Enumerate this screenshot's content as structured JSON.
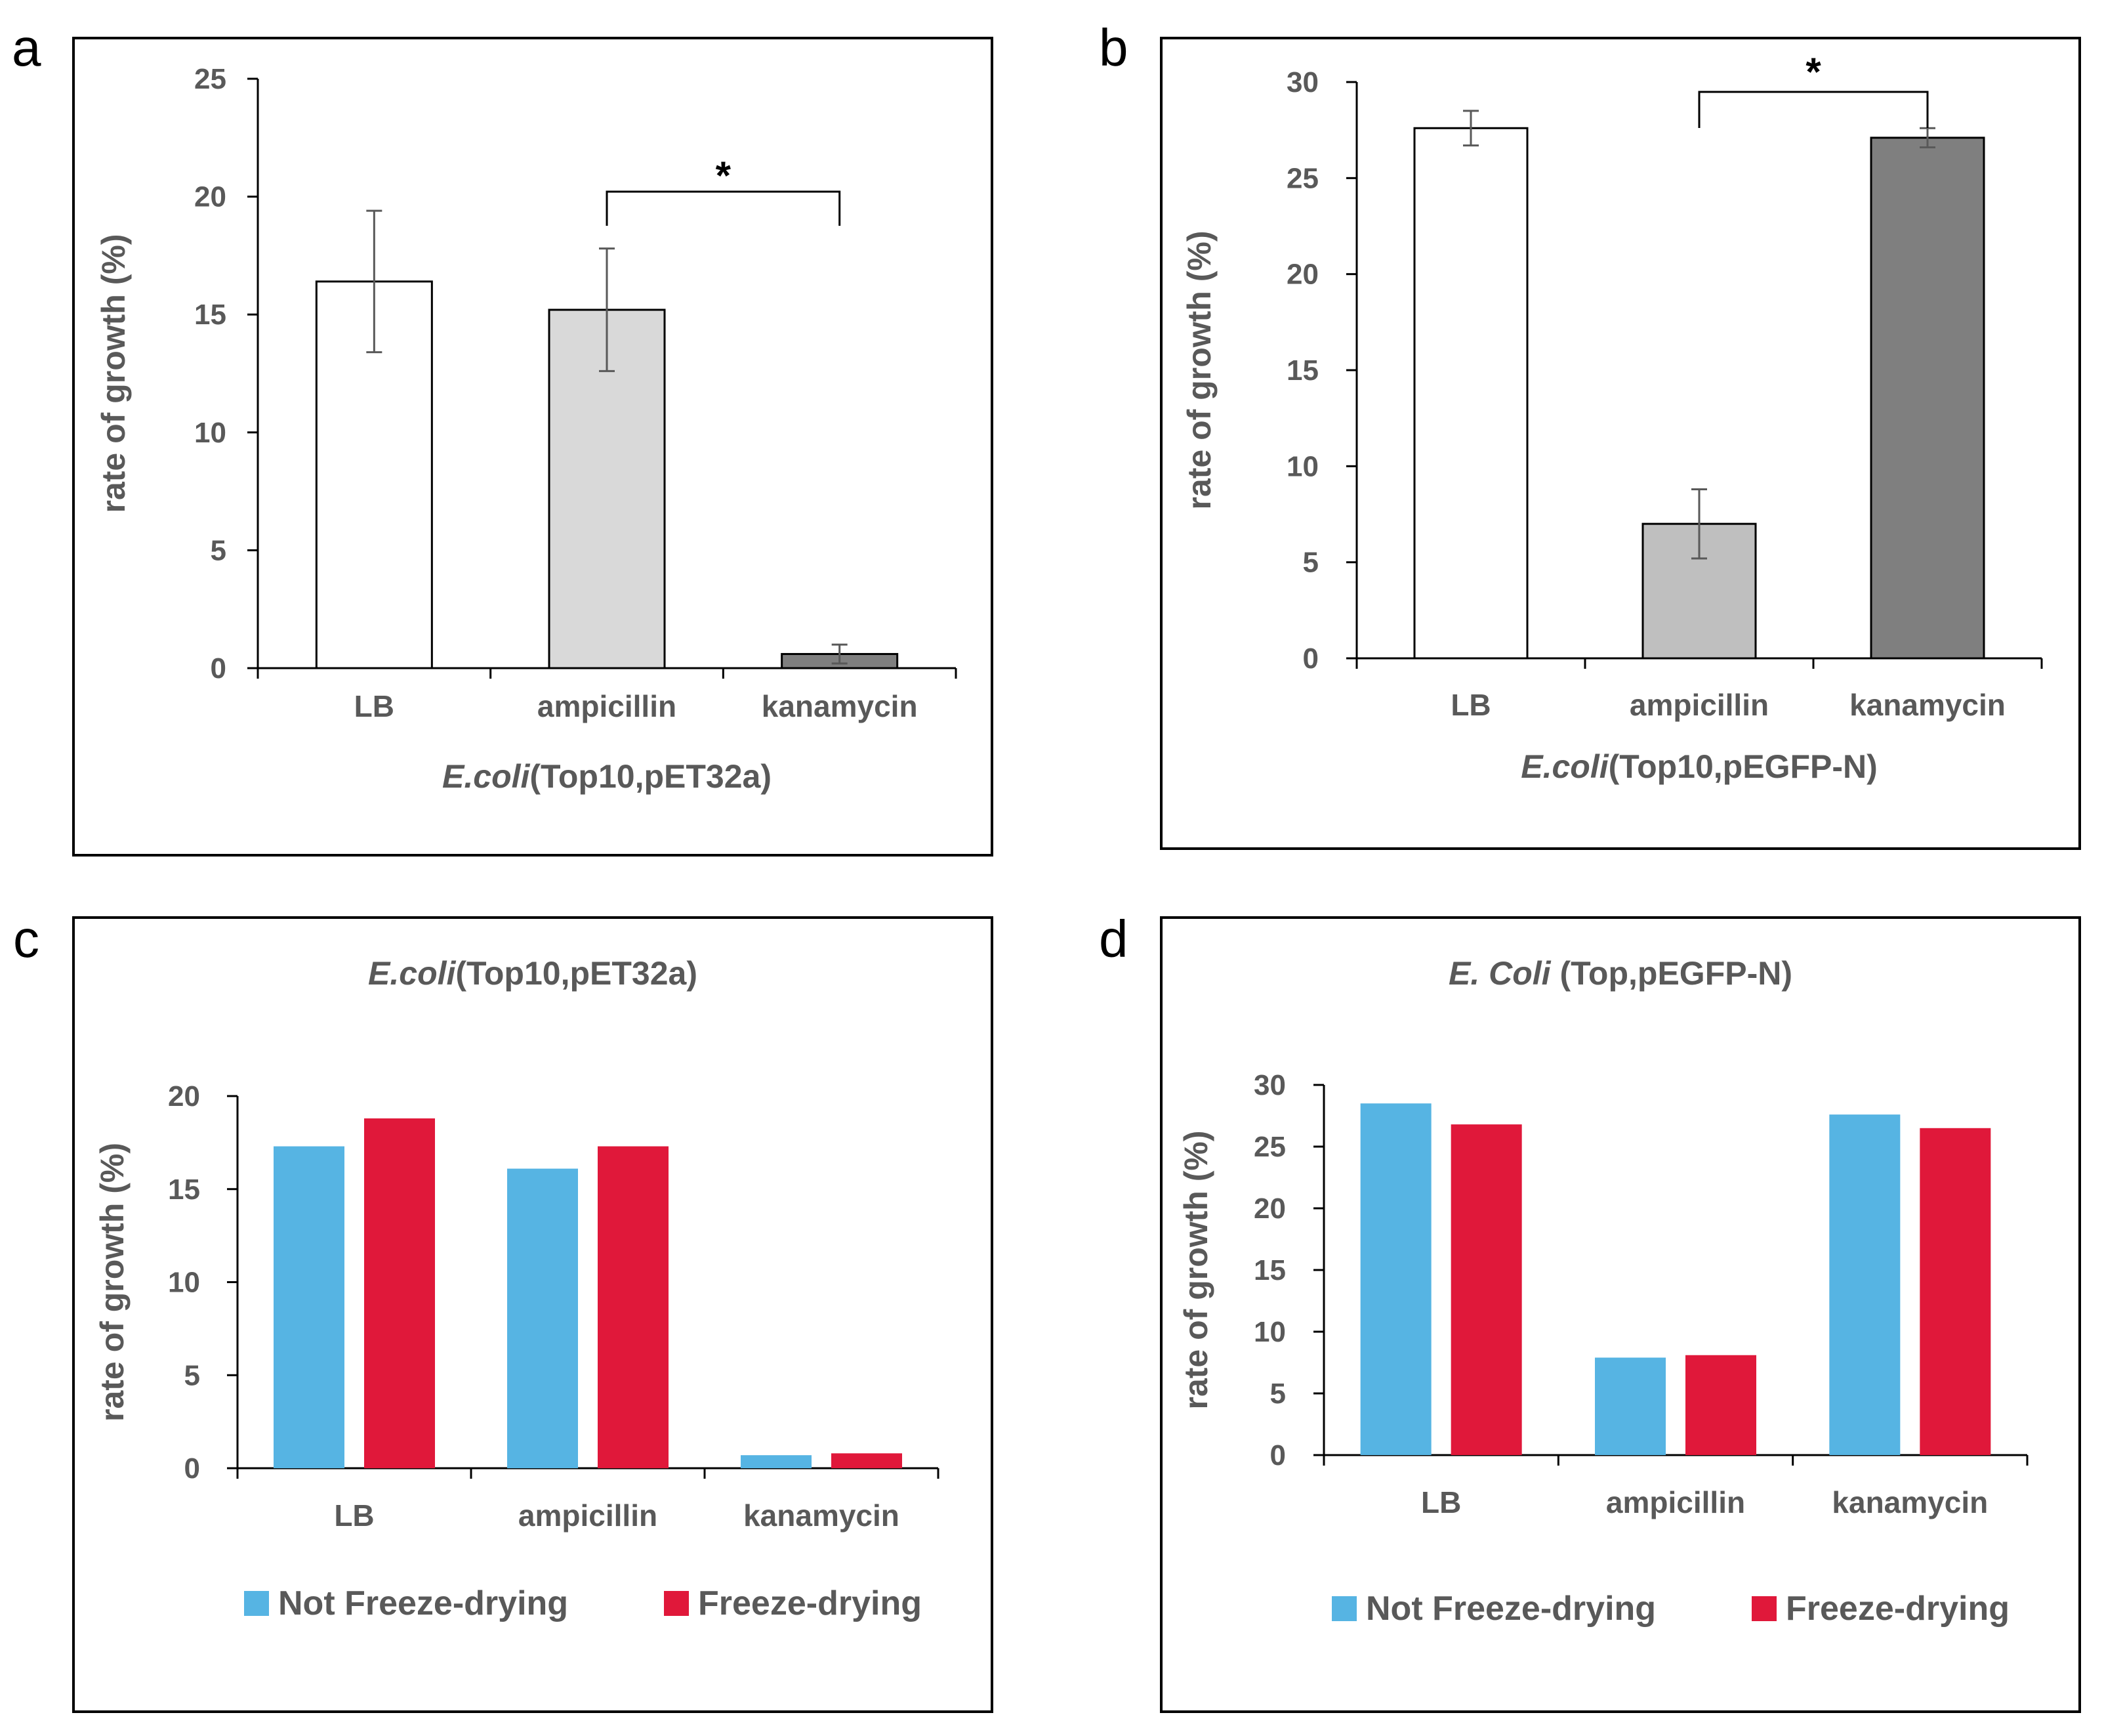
{
  "panels": {
    "a": {
      "letter": "a"
    },
    "b": {
      "letter": "b"
    },
    "c": {
      "letter": "c"
    },
    "d": {
      "letter": "d"
    }
  },
  "chart_data": [
    {
      "id": "a",
      "type": "bar",
      "title": "",
      "xlabel_italic": "E.coli",
      "xlabel_rest": "(Top10,pET32a)",
      "ylabel": "rate of growth (%)",
      "ylim": [
        0,
        25
      ],
      "yticks": [
        0,
        5,
        10,
        15,
        20,
        25
      ],
      "categories": [
        "LB",
        "ampicillin",
        "kanamycin"
      ],
      "values": [
        16.4,
        15.2,
        0.6
      ],
      "errors": [
        3.0,
        2.6,
        0.4
      ],
      "colors": [
        "#ffffff",
        "#d9d9d9",
        "#7f7f7f"
      ],
      "significance": {
        "from": "ampicillin",
        "to": "kanamycin",
        "label": "*"
      }
    },
    {
      "id": "b",
      "type": "bar",
      "title": "",
      "xlabel_italic": "E.coli",
      "xlabel_rest": "(Top10,pEGFP-N)",
      "ylabel": "rate of growth (%)",
      "ylim": [
        0,
        30
      ],
      "yticks": [
        0,
        5,
        10,
        15,
        20,
        25,
        30
      ],
      "categories": [
        "LB",
        "ampicillin",
        "kanamycin"
      ],
      "values": [
        27.6,
        7.0,
        27.1
      ],
      "errors": [
        0.9,
        1.8,
        0.5
      ],
      "colors": [
        "#ffffff",
        "#bfbfbf",
        "#7f7f7f"
      ],
      "significance": {
        "from": "ampicillin",
        "to": "kanamycin",
        "label": "*"
      }
    },
    {
      "id": "c",
      "type": "bar",
      "title_italic": "E.coli",
      "title_rest": "(Top10,pET32a)",
      "ylabel": "rate of growth (%)",
      "ylim": [
        0,
        20
      ],
      "yticks": [
        0,
        5,
        10,
        15,
        20
      ],
      "categories": [
        "LB",
        "ampicillin",
        "kanamycin"
      ],
      "series": [
        {
          "name": "Not Freeze-drying",
          "color": "#56b4e3",
          "values": [
            17.3,
            16.1,
            0.7
          ]
        },
        {
          "name": "Freeze-drying",
          "color": "#e0183a",
          "values": [
            18.8,
            17.3,
            0.8
          ]
        }
      ],
      "legend": "bottom"
    },
    {
      "id": "d",
      "type": "bar",
      "title_italic": "E. Coli",
      "title_rest": " (Top,pEGFP-N)",
      "ylabel": "rate of growth (%)",
      "ylim": [
        0,
        30
      ],
      "yticks": [
        0,
        5,
        10,
        15,
        20,
        25,
        30
      ],
      "categories": [
        "LB",
        "ampicillin",
        "kanamycin"
      ],
      "series": [
        {
          "name": "Not Freeze-drying",
          "color": "#56b4e3",
          "values": [
            28.5,
            7.9,
            27.6
          ]
        },
        {
          "name": "Freeze-drying",
          "color": "#e0183a",
          "values": [
            26.8,
            8.1,
            26.5
          ]
        }
      ],
      "legend": "bottom"
    }
  ]
}
